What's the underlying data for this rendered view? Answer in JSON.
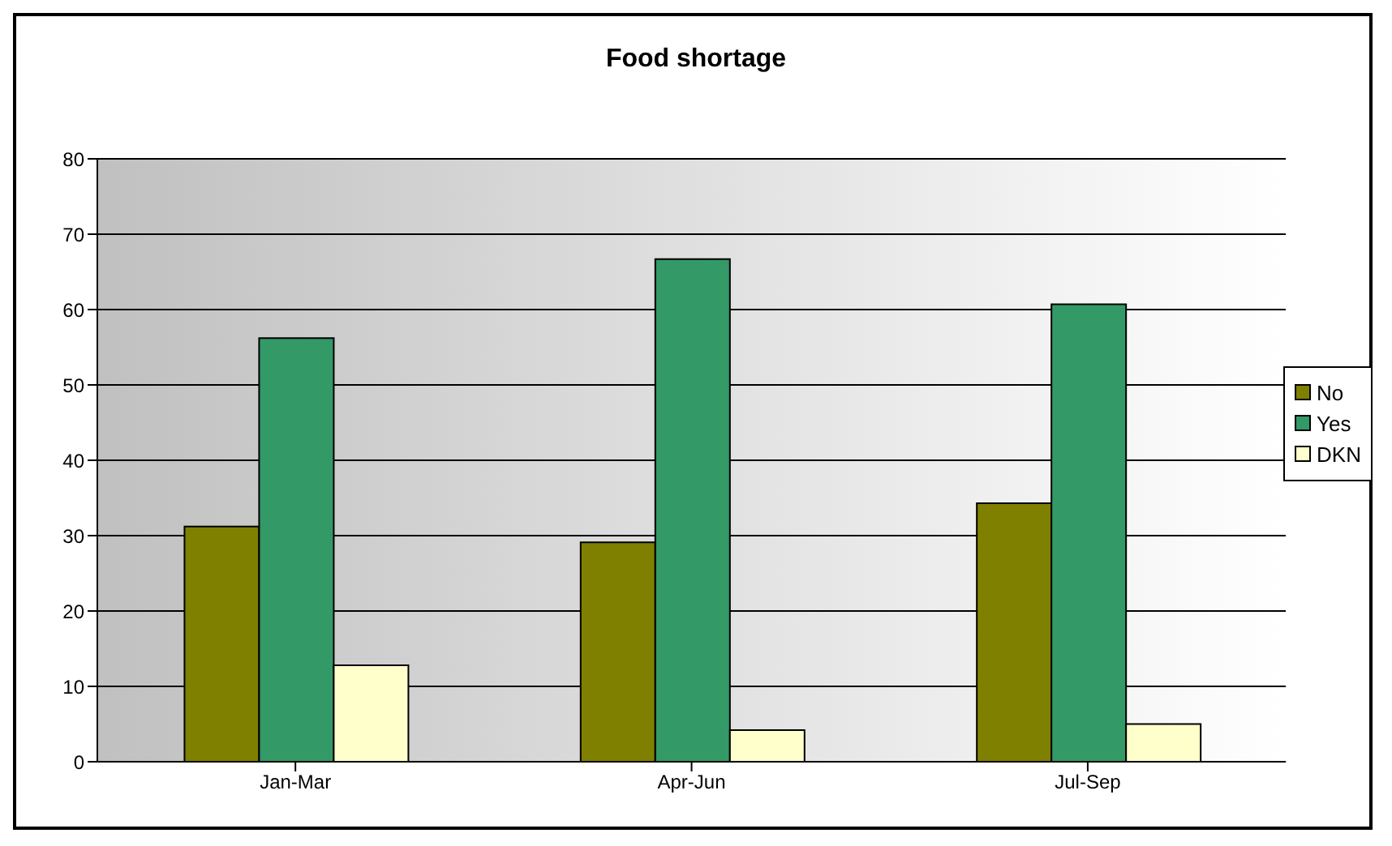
{
  "chart_data": {
    "type": "bar",
    "title": "Food shortage",
    "categories": [
      "Jan-Mar",
      "Apr-Jun",
      "Jul-Sep"
    ],
    "series": [
      {
        "name": "No",
        "color": "#808000",
        "values": [
          31.2,
          29.1,
          34.3
        ]
      },
      {
        "name": "Yes",
        "color": "#339966",
        "values": [
          56.2,
          66.7,
          60.7
        ]
      },
      {
        "name": "DKN",
        "color": "#ffffcc",
        "values": [
          12.8,
          4.2,
          5.0
        ]
      }
    ],
    "ylim": [
      0,
      80
    ],
    "yticks": [
      0,
      10,
      20,
      30,
      40,
      50,
      60,
      70,
      80
    ],
    "grid": "y",
    "legend": "right"
  }
}
